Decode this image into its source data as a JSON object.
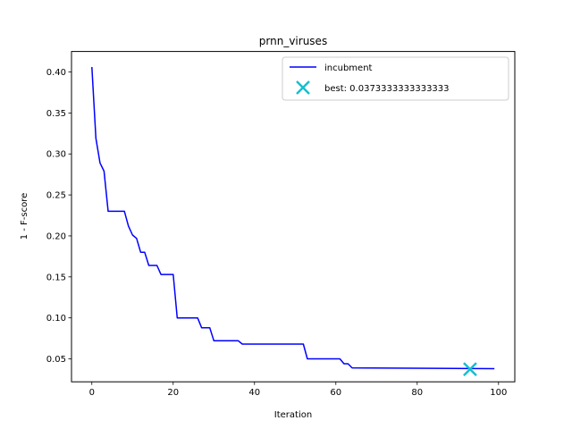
{
  "chart_data": {
    "type": "line",
    "title": "prnn_viruses",
    "xlabel": "Iteration",
    "ylabel": "1 - F-score",
    "xlim": [
      -5,
      104
    ],
    "ylim": [
      0.022,
      0.425
    ],
    "x_ticks": [
      0,
      20,
      40,
      60,
      80,
      100
    ],
    "y_ticks": [
      0.05,
      0.1,
      0.15,
      0.2,
      0.25,
      0.3,
      0.35,
      0.4
    ],
    "x_tick_labels": [
      "0",
      "20",
      "40",
      "60",
      "80",
      "100"
    ],
    "y_tick_labels": [
      "0.05",
      "0.10",
      "0.15",
      "0.20",
      "0.25",
      "0.30",
      "0.35",
      "0.40"
    ],
    "grid": false,
    "legend_position": "top-right",
    "series": [
      {
        "name": "incubment",
        "color": "#0000ff",
        "x": [
          0,
          1,
          2,
          3,
          4,
          5,
          6,
          7,
          8,
          9,
          10,
          11,
          12,
          13,
          14,
          15,
          16,
          17,
          18,
          19,
          20,
          21,
          22,
          23,
          24,
          25,
          26,
          27,
          28,
          29,
          30,
          31,
          32,
          33,
          34,
          35,
          36,
          37,
          38,
          52,
          53,
          61,
          62,
          63,
          64,
          99
        ],
        "y": [
          0.406,
          0.319,
          0.289,
          0.279,
          0.23,
          0.23,
          0.23,
          0.23,
          0.23,
          0.212,
          0.201,
          0.197,
          0.18,
          0.18,
          0.164,
          0.164,
          0.164,
          0.153,
          0.153,
          0.153,
          0.153,
          0.1,
          0.1,
          0.1,
          0.1,
          0.1,
          0.1,
          0.088,
          0.088,
          0.088,
          0.072,
          0.072,
          0.072,
          0.072,
          0.072,
          0.072,
          0.072,
          0.068,
          0.068,
          0.068,
          0.05,
          0.05,
          0.044,
          0.044,
          0.039,
          0.038
        ]
      }
    ],
    "best_point": {
      "name": "best: 0.0373333333333333",
      "x": 93,
      "y": 0.0373333333333333,
      "color": "#17becf",
      "marker": "x"
    }
  }
}
